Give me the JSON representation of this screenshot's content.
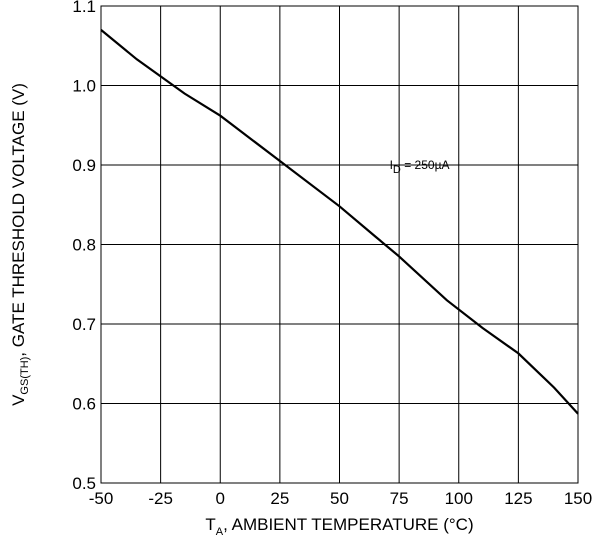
{
  "chart_data": {
    "type": "line",
    "title": "",
    "xlabel": {
      "main": "T",
      "sub": "A",
      "rest": ", AMBIENT TEMPERATURE (°C)"
    },
    "ylabel": {
      "main": "V",
      "sub": "GS(TH)",
      "rest": ", GATE THRESHOLD VOLTAGE (V)"
    },
    "xlim": [
      -50,
      150
    ],
    "ylim": [
      0.5,
      1.1
    ],
    "xticks": [
      -50,
      -25,
      0,
      25,
      50,
      75,
      100,
      125,
      150
    ],
    "xtick_labels": [
      "-50",
      "-25",
      "0",
      "25",
      "50",
      "75",
      "100",
      "125",
      "150"
    ],
    "yticks": [
      0.5,
      0.6,
      0.7,
      0.8,
      0.9,
      1.0,
      1.1
    ],
    "ytick_labels": [
      "0.5",
      "0.6",
      "0.7",
      "0.8",
      "0.9",
      "1.0",
      "1.1"
    ],
    "grid": true,
    "series": [
      {
        "x": [
          -50,
          -35,
          -15,
          0,
          25,
          50,
          65,
          75,
          95,
          110,
          125,
          140,
          150
        ],
        "y": [
          1.07,
          1.033,
          0.99,
          0.962,
          0.905,
          0.848,
          0.81,
          0.785,
          0.73,
          0.695,
          0.663,
          0.62,
          0.587
        ]
      }
    ],
    "annotations": [
      {
        "main": "I",
        "sub": "D",
        "rest": " = 250µA",
        "x": 71,
        "y": 0.895
      }
    ]
  }
}
